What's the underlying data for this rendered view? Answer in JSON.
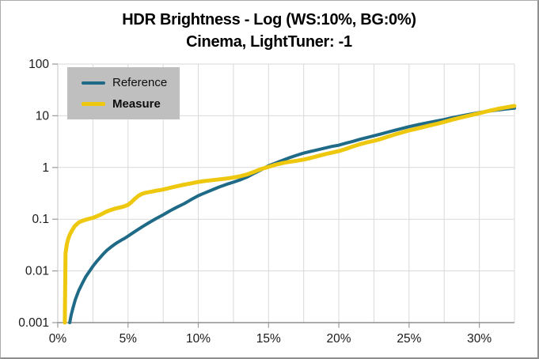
{
  "title": {
    "line1": "HDR Brightness - Log (WS:10%, BG:0%)",
    "line2": "Cinema, LightTuner: -1"
  },
  "legend": {
    "position": "top-left",
    "background": "#bfbfbf"
  },
  "colors": {
    "reference_line": "#1f6a87",
    "measure_line": "#eec80e",
    "gridline": "#d9d9d9",
    "axis_line": "#8f8f8f",
    "tick": "#9a9a9a",
    "label_text": "#1a1a1a",
    "title_text": "#000000"
  },
  "chart_data": {
    "type": "line",
    "title": "HDR Brightness - Log (WS:10%, BG:0%)",
    "subtitle": "Cinema, LightTuner: -1",
    "grid": true,
    "legend_position": "top-left",
    "x_axis": {
      "unit": "%",
      "range": [
        0,
        32.5
      ],
      "tick_values": [
        0,
        5,
        10,
        15,
        20,
        25,
        30
      ],
      "tick_labels": [
        "0%",
        "5%",
        "10%",
        "15%",
        "20%",
        "25%",
        "30%"
      ],
      "gridline_step": 2.5
    },
    "y_axis": {
      "scale": "log",
      "range": [
        0.001,
        100
      ],
      "tick_values": [
        100,
        10,
        1,
        0.1,
        0.01,
        0.001
      ],
      "tick_labels": [
        "100",
        "10",
        "1",
        "0.1",
        "0.01",
        "0.001"
      ]
    },
    "series": [
      {
        "name": "Reference",
        "color": "#1f6a87",
        "stroke_width": 4,
        "bold_legend": false,
        "points": [
          [
            0.85,
            0.001
          ],
          [
            0.95,
            0.0014
          ],
          [
            1.1,
            0.002
          ],
          [
            1.25,
            0.0028
          ],
          [
            1.5,
            0.0042
          ],
          [
            1.75,
            0.0058
          ],
          [
            2,
            0.0078
          ],
          [
            2.25,
            0.0098
          ],
          [
            2.5,
            0.0123
          ],
          [
            2.75,
            0.015
          ],
          [
            3,
            0.018
          ],
          [
            3.25,
            0.0215
          ],
          [
            3.5,
            0.025
          ],
          [
            3.75,
            0.0285
          ],
          [
            4,
            0.032
          ],
          [
            4.25,
            0.0355
          ],
          [
            4.5,
            0.039
          ],
          [
            4.75,
            0.0425
          ],
          [
            5,
            0.047
          ],
          [
            5.5,
            0.058
          ],
          [
            6,
            0.071
          ],
          [
            6.5,
            0.086
          ],
          [
            7,
            0.103
          ],
          [
            7.5,
            0.122
          ],
          [
            8,
            0.146
          ],
          [
            8.5,
            0.172
          ],
          [
            9,
            0.2
          ],
          [
            9.5,
            0.24
          ],
          [
            10,
            0.285
          ],
          [
            10.5,
            0.325
          ],
          [
            11,
            0.37
          ],
          [
            11.5,
            0.42
          ],
          [
            12,
            0.47
          ],
          [
            12.5,
            0.52
          ],
          [
            13,
            0.58
          ],
          [
            13.5,
            0.66
          ],
          [
            14,
            0.78
          ],
          [
            14.5,
            0.91
          ],
          [
            15,
            1.08
          ],
          [
            15.5,
            1.22
          ],
          [
            16,
            1.38
          ],
          [
            16.5,
            1.55
          ],
          [
            17,
            1.72
          ],
          [
            17.5,
            1.9
          ],
          [
            18,
            2.05
          ],
          [
            18.5,
            2.2
          ],
          [
            19,
            2.37
          ],
          [
            19.5,
            2.55
          ],
          [
            20,
            2.7
          ],
          [
            20.5,
            2.95
          ],
          [
            21,
            3.2
          ],
          [
            21.5,
            3.5
          ],
          [
            22,
            3.8
          ],
          [
            22.5,
            4.1
          ],
          [
            23,
            4.45
          ],
          [
            23.5,
            4.85
          ],
          [
            24,
            5.25
          ],
          [
            24.5,
            5.7
          ],
          [
            25,
            6.15
          ],
          [
            25.5,
            6.6
          ],
          [
            26,
            7.05
          ],
          [
            26.5,
            7.5
          ],
          [
            27,
            7.95
          ],
          [
            27.5,
            8.45
          ],
          [
            28,
            9.1
          ],
          [
            28.5,
            9.7
          ],
          [
            29,
            10.3
          ],
          [
            29.5,
            10.9
          ],
          [
            30,
            11.5
          ],
          [
            30.5,
            12.1
          ],
          [
            31,
            12.6
          ],
          [
            31.5,
            13.1
          ],
          [
            32,
            13.6
          ],
          [
            32.5,
            14
          ]
        ]
      },
      {
        "name": "Measure",
        "color": "#eec80e",
        "stroke_width": 5,
        "bold_legend": true,
        "points": [
          [
            0.5,
            0.001
          ],
          [
            0.55,
            0.022
          ],
          [
            0.65,
            0.033
          ],
          [
            0.75,
            0.042
          ],
          [
            0.85,
            0.05
          ],
          [
            1,
            0.06
          ],
          [
            1.2,
            0.073
          ],
          [
            1.5,
            0.087
          ],
          [
            1.75,
            0.093
          ],
          [
            2,
            0.098
          ],
          [
            2.25,
            0.102
          ],
          [
            2.5,
            0.106
          ],
          [
            2.75,
            0.113
          ],
          [
            3,
            0.121
          ],
          [
            3.25,
            0.131
          ],
          [
            3.5,
            0.141
          ],
          [
            3.75,
            0.15
          ],
          [
            4,
            0.158
          ],
          [
            4.25,
            0.164
          ],
          [
            4.5,
            0.17
          ],
          [
            4.75,
            0.178
          ],
          [
            5,
            0.19
          ],
          [
            5.25,
            0.215
          ],
          [
            5.5,
            0.25
          ],
          [
            5.75,
            0.285
          ],
          [
            6,
            0.31
          ],
          [
            6.25,
            0.325
          ],
          [
            6.5,
            0.335
          ],
          [
            7,
            0.355
          ],
          [
            7.5,
            0.375
          ],
          [
            8,
            0.405
          ],
          [
            8.5,
            0.435
          ],
          [
            9,
            0.465
          ],
          [
            9.5,
            0.495
          ],
          [
            10,
            0.525
          ],
          [
            10.5,
            0.55
          ],
          [
            11,
            0.57
          ],
          [
            11.5,
            0.59
          ],
          [
            12,
            0.61
          ],
          [
            12.5,
            0.64
          ],
          [
            13,
            0.68
          ],
          [
            13.5,
            0.74
          ],
          [
            14,
            0.83
          ],
          [
            14.5,
            0.94
          ],
          [
            15,
            1.03
          ],
          [
            15.5,
            1.13
          ],
          [
            16,
            1.22
          ],
          [
            16.5,
            1.29
          ],
          [
            17,
            1.35
          ],
          [
            17.5,
            1.42
          ],
          [
            18,
            1.53
          ],
          [
            18.5,
            1.66
          ],
          [
            19,
            1.8
          ],
          [
            19.5,
            1.93
          ],
          [
            20,
            2.07
          ],
          [
            20.5,
            2.28
          ],
          [
            21,
            2.55
          ],
          [
            21.5,
            2.82
          ],
          [
            22,
            3.05
          ],
          [
            22.5,
            3.27
          ],
          [
            23,
            3.56
          ],
          [
            23.5,
            3.95
          ],
          [
            24,
            4.35
          ],
          [
            24.5,
            4.75
          ],
          [
            25,
            5.2
          ],
          [
            25.5,
            5.6
          ],
          [
            26,
            6.05
          ],
          [
            26.5,
            6.5
          ],
          [
            27,
            7
          ],
          [
            27.5,
            7.6
          ],
          [
            28,
            8.3
          ],
          [
            28.5,
            9
          ],
          [
            29,
            9.7
          ],
          [
            29.5,
            10.4
          ],
          [
            30,
            11.2
          ],
          [
            30.5,
            12.1
          ],
          [
            31,
            13
          ],
          [
            31.5,
            13.9
          ],
          [
            32,
            14.7
          ],
          [
            32.5,
            15.5
          ]
        ]
      }
    ]
  }
}
